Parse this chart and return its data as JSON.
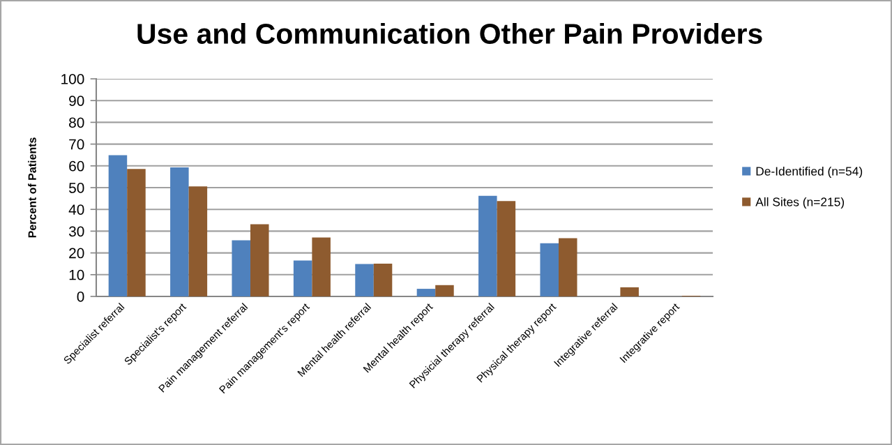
{
  "chart_data": {
    "type": "bar",
    "title": "Use and Communication Other Pain Providers",
    "ylabel": "Percent of Patients",
    "categories": [
      "Specialist referral",
      "Specialist's report",
      "Pain management referral",
      "Pain management's report",
      "Mental health referral",
      "Mental health report",
      "Physicial therapy referral",
      "Physical therapy report",
      "Integrative referral",
      "Integrative report"
    ],
    "series": [
      {
        "name": "De-Identified (n=54)",
        "color": "#4f81bd",
        "values": [
          64.9,
          59.3,
          25.8,
          16.5,
          14.9,
          3.5,
          46.2,
          24.4,
          0,
          0
        ]
      },
      {
        "name": "All Sites (n=215)",
        "color": "#8e5b2f",
        "values": [
          58.6,
          50.6,
          33.2,
          27.1,
          15.1,
          5.2,
          43.8,
          26.8,
          4.2,
          0.3
        ]
      }
    ],
    "ylim": [
      0,
      100
    ],
    "yticks": [
      0,
      10,
      20,
      30,
      40,
      50,
      60,
      70,
      80,
      90,
      100
    ],
    "grid": "y",
    "legend": "right"
  }
}
